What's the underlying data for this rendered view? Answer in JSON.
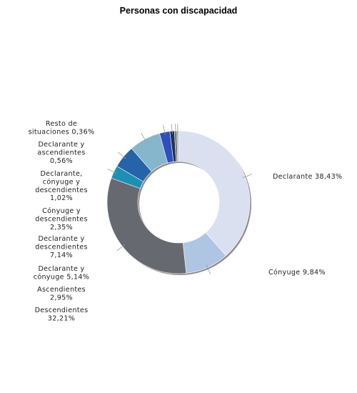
{
  "chart_data": {
    "type": "pie",
    "variant": "donut",
    "title": "Personas con discapacidad",
    "legend": "none",
    "slices": [
      {
        "name": "Declarante",
        "value": 38.43,
        "label_lines": [
          "Declarante 38,43%"
        ],
        "color": "#dbe0f1"
      },
      {
        "name": "Cónyuge",
        "value": 9.84,
        "label_lines": [
          "Cónyuge 9,84%"
        ],
        "color": "#aec5e3"
      },
      {
        "name": "Descendientes",
        "value": 32.21,
        "label_lines": [
          "Descendientes",
          "32,21%"
        ],
        "color": "#666a70"
      },
      {
        "name": "Ascendientes",
        "value": 2.95,
        "label_lines": [
          "Ascendientes",
          "2,95%"
        ],
        "color": "#1b90b4"
      },
      {
        "name": "Declarante y cónyuge",
        "value": 5.14,
        "label_lines": [
          "Declarante y",
          "cónyuge 5,14%"
        ],
        "color": "#2564a7"
      },
      {
        "name": "Declarante y descendientes",
        "value": 7.14,
        "label_lines": [
          "Declarante y",
          "descendientes",
          "7,14%"
        ],
        "color": "#86b6cb"
      },
      {
        "name": "Cónyuge y descendientes",
        "value": 2.35,
        "label_lines": [
          "Cónyuge y",
          "descendientes",
          "2,35%"
        ],
        "color": "#2f4fbf"
      },
      {
        "name": "Declarante, cónyuge y descendientes",
        "value": 1.02,
        "label_lines": [
          "Declarante,",
          "cónyuge y",
          "descendientes",
          "1,02%"
        ],
        "color": "#23314e"
      },
      {
        "name": "Declarante y ascendientes",
        "value": 0.56,
        "label_lines": [
          "Declarante y",
          "ascendientes",
          "0,56%"
        ],
        "color": "#6f7a86"
      },
      {
        "name": "Resto de situaciones",
        "value": 0.36,
        "label_lines": [
          "Resto de",
          "situaciones 0,36%"
        ],
        "color": "#9aa3ad"
      }
    ]
  }
}
